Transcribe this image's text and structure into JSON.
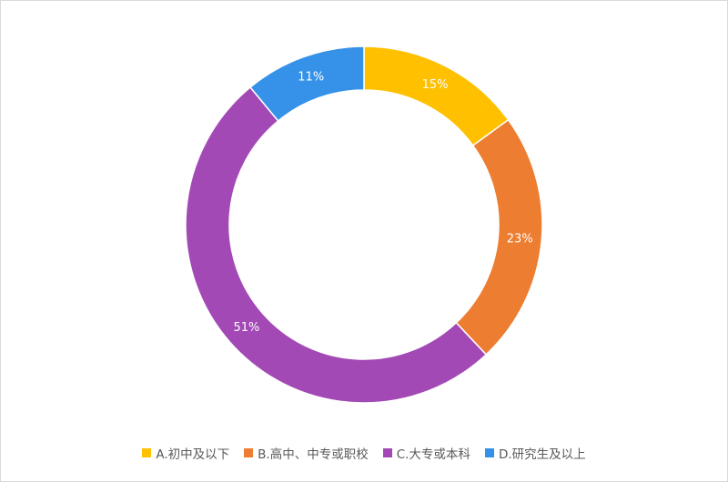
{
  "chart_data": {
    "type": "pie",
    "variant": "donut",
    "categories": [
      "A.初中及以下",
      "B.高中、中专或职校",
      "C.大专或本科",
      "D.研究生及以上"
    ],
    "values": [
      15,
      23,
      51,
      11
    ],
    "labels": [
      "15%",
      "23%",
      "51%",
      "11%"
    ],
    "colors": [
      "#FFC000",
      "#ED7D31",
      "#A349B6",
      "#3592E8"
    ],
    "legend_position": "bottom",
    "label_color": "#ffffff"
  },
  "legend": {
    "items": [
      {
        "label": "A.初中及以下"
      },
      {
        "label": "B.高中、中专或职校"
      },
      {
        "label": "C.大专或本科"
      },
      {
        "label": "D.研究生及以上"
      }
    ]
  }
}
